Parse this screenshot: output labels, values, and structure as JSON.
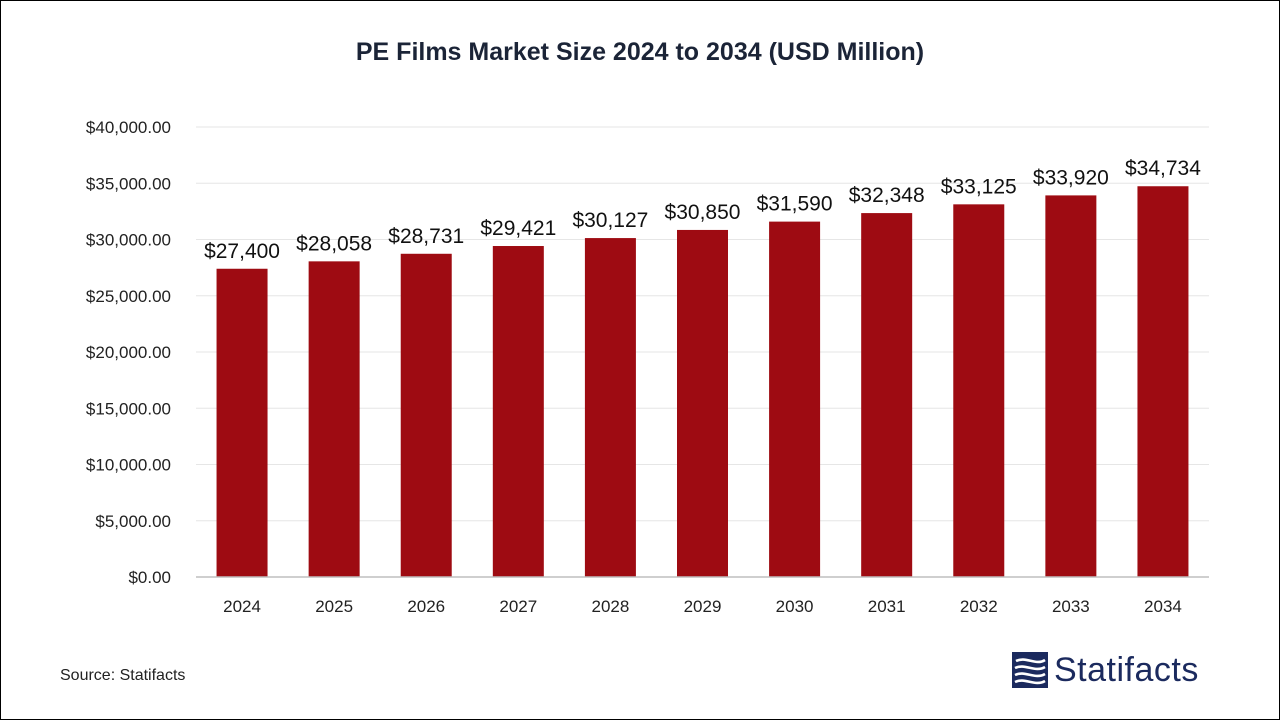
{
  "chart_data": {
    "type": "bar",
    "title": "PE Films Market Size 2024 to 2034 (USD Million)",
    "categories": [
      "2024",
      "2025",
      "2026",
      "2027",
      "2028",
      "2029",
      "2030",
      "2031",
      "2032",
      "2033",
      "2034"
    ],
    "values": [
      27400,
      28058,
      28731,
      29421,
      30127,
      30850,
      31590,
      32348,
      33125,
      33920,
      34734
    ],
    "data_labels": [
      "$27,400",
      "$28,058",
      "$28,731",
      "$29,421",
      "$30,127",
      "$30,850",
      "$31,590",
      "$32,348",
      "$33,125",
      "$33,920",
      "$34,734"
    ],
    "ylim": [
      0,
      40000
    ],
    "yticks": [
      0,
      5000,
      10000,
      15000,
      20000,
      25000,
      30000,
      35000,
      40000
    ],
    "ytick_labels": [
      "$0.00",
      "$5,000.00",
      "$10,000.00",
      "$15,000.00",
      "$20,000.00",
      "$25,000.00",
      "$30,000.00",
      "$35,000.00",
      "$40,000.00"
    ],
    "grid": true,
    "legend": "none",
    "bar_color": "#9e0b12"
  },
  "footer": {
    "source": "Source: Statifacts",
    "brand": "Statifacts"
  },
  "colors": {
    "title": "#1b2437",
    "brand": "#1b2a5e",
    "grid": "#e6e6e6"
  }
}
